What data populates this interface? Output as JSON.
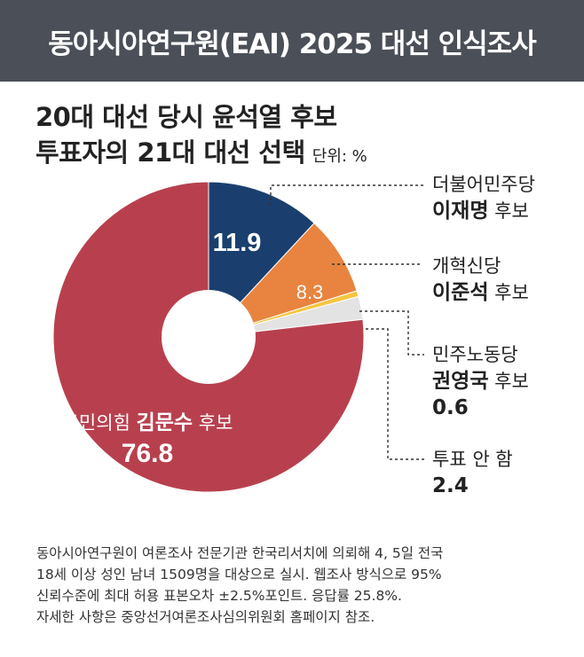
{
  "header": {
    "title": "동아시아연구원(EAI) 2025 대선 인식조사"
  },
  "title": {
    "line1": "20대 대선 당시 윤석열 후보",
    "line2": "투표자의 21대 대선 선택",
    "unit": "단위: %"
  },
  "chart_data": {
    "type": "pie",
    "title": "20대 대선 당시 윤석열 후보 투표자의 21대 대선 선택",
    "unit": "%",
    "categories": [
      "더불어민주당 이재명 후보",
      "개혁신당 이준석 후보",
      "민주노동당 권영국 후보",
      "투표 안 함",
      "국민의힘 김문수 후보"
    ],
    "values": [
      11.9,
      8.3,
      0.6,
      2.4,
      76.8
    ],
    "colors": [
      "#1a3f6f",
      "#e8843f",
      "#f5c542",
      "#e3e3e3",
      "#b8404e"
    ],
    "value_labels": [
      "11.9",
      "8.3",
      "",
      "",
      "76.8"
    ]
  },
  "labels": {
    "lee_jm": {
      "party": "더불어민주당",
      "name": "이재명",
      "suffix": "후보"
    },
    "lee_js": {
      "party": "개혁신당",
      "name": "이준석",
      "suffix": "후보"
    },
    "kwon": {
      "party": "민주노동당",
      "name": "권영국",
      "suffix": "후보",
      "value": "0.6"
    },
    "novote": {
      "name": "투표 안 함",
      "value": "2.4"
    },
    "kim": {
      "party": "국민의힘",
      "name": "김문수",
      "suffix": "후보",
      "value": "76.8"
    }
  },
  "note": {
    "line1": "동아시아연구원이 여론조사 전문기관 한국리서치에 의뢰해 4, 5일 전국",
    "line2": "18세 이상 성인 남녀 1509명을 대상으로 실시. 웹조사 방식으로 95%",
    "line3": "신뢰수준에 최대 허용 표본오차 ±2.5%포인트. 응답률 25.8%.",
    "line4": "자세한 사항은 중앙선거여론조사심의위원회 홈페이지 참조."
  }
}
